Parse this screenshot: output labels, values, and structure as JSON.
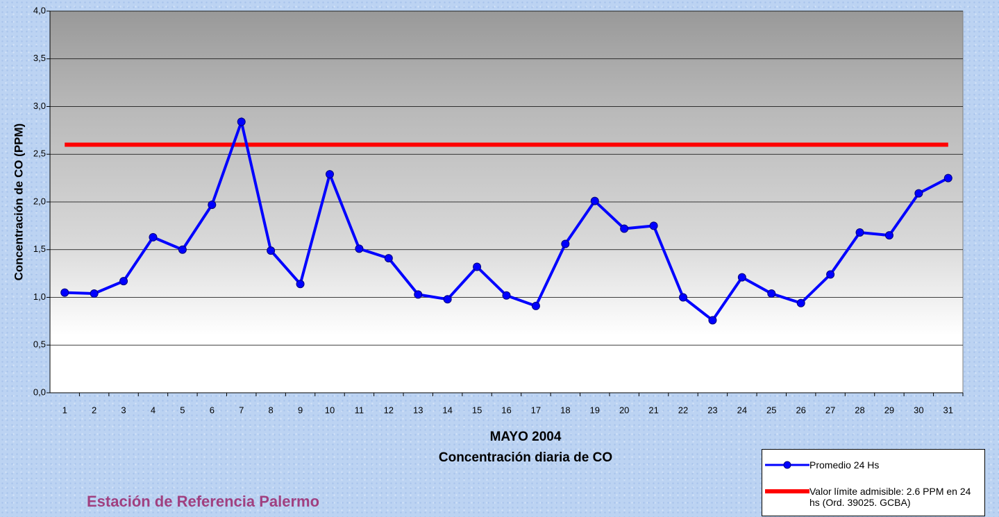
{
  "chart_data": {
    "type": "line",
    "x_label": [
      "MAYO 2004",
      "Concentración diaria de CO"
    ],
    "y_label": "Concentración de CO (PPM)",
    "footer": "Estación de Referencia Palermo",
    "categories": [
      "1",
      "2",
      "3",
      "4",
      "5",
      "6",
      "7",
      "8",
      "9",
      "10",
      "11",
      "12",
      "13",
      "14",
      "15",
      "16",
      "17",
      "18",
      "19",
      "20",
      "21",
      "22",
      "23",
      "24",
      "25",
      "26",
      "27",
      "28",
      "29",
      "30",
      "31"
    ],
    "series": [
      {
        "name": "Promedio 24 Hs",
        "color": "#0000ff",
        "markers": true,
        "values": [
          1.05,
          1.04,
          1.17,
          1.63,
          1.5,
          1.97,
          2.84,
          1.49,
          1.14,
          2.29,
          1.51,
          1.41,
          1.03,
          0.98,
          1.32,
          1.02,
          0.91,
          1.56,
          2.01,
          1.72,
          1.75,
          1.0,
          0.76,
          1.21,
          1.04,
          0.94,
          1.24,
          1.68,
          1.65,
          2.09,
          2.25
        ]
      },
      {
        "name": "Valor límite admisible: 2.6 PPM en 24 hs (Ord. 39025. GCBA)",
        "color": "#ff0000",
        "markers": false,
        "values": [
          2.6,
          2.6,
          2.6,
          2.6,
          2.6,
          2.6,
          2.6,
          2.6,
          2.6,
          2.6,
          2.6,
          2.6,
          2.6,
          2.6,
          2.6,
          2.6,
          2.6,
          2.6,
          2.6,
          2.6,
          2.6,
          2.6,
          2.6,
          2.6,
          2.6,
          2.6,
          2.6,
          2.6,
          2.6,
          2.6,
          2.6
        ]
      }
    ],
    "ylim": [
      0,
      4
    ],
    "yticks": [
      {
        "value": 0,
        "label": "0,0"
      },
      {
        "value": 0.5,
        "label": "0,5"
      },
      {
        "value": 1,
        "label": "1,0"
      },
      {
        "value": 1.5,
        "label": "1,5"
      },
      {
        "value": 2,
        "label": "2,0"
      },
      {
        "value": 2.5,
        "label": "2,5"
      },
      {
        "value": 3,
        "label": "3,0"
      },
      {
        "value": 3.5,
        "label": "3,5"
      },
      {
        "value": 4,
        "label": "4,0"
      }
    ],
    "grid": true
  }
}
